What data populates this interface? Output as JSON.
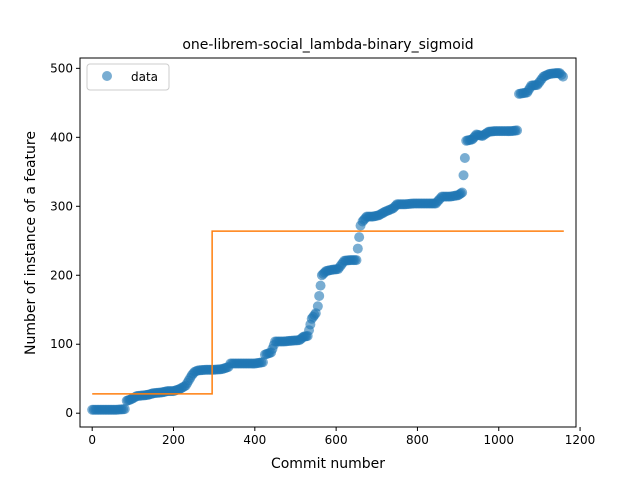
{
  "chart_data": {
    "type": "scatter",
    "title": "one-librem-social_lambda-binary_sigmoid",
    "xlabel": "Commit number",
    "ylabel": "Number of instance of a feature",
    "xlim": [
      -30,
      1190
    ],
    "ylim": [
      -20,
      515
    ],
    "xticks": [
      0,
      200,
      400,
      600,
      800,
      1000,
      1200
    ],
    "yticks": [
      0,
      100,
      200,
      300,
      400,
      500
    ],
    "legend": {
      "placement": "top-left",
      "entries": [
        "data"
      ]
    },
    "grid": false,
    "series": [
      {
        "name": "data",
        "kind": "scatter",
        "color": "#1f77b4",
        "points": [
          [
            0,
            5
          ],
          [
            20,
            5
          ],
          [
            40,
            5
          ],
          [
            60,
            5
          ],
          [
            80,
            6
          ],
          [
            85,
            18
          ],
          [
            95,
            20
          ],
          [
            110,
            25
          ],
          [
            130,
            26
          ],
          [
            140,
            27
          ],
          [
            150,
            29
          ],
          [
            170,
            30
          ],
          [
            185,
            32
          ],
          [
            200,
            32
          ],
          [
            215,
            35
          ],
          [
            230,
            40
          ],
          [
            245,
            55
          ],
          [
            252,
            60
          ],
          [
            260,
            62
          ],
          [
            280,
            63
          ],
          [
            300,
            63
          ],
          [
            320,
            64
          ],
          [
            335,
            67
          ],
          [
            340,
            72
          ],
          [
            360,
            72
          ],
          [
            380,
            72
          ],
          [
            400,
            72
          ],
          [
            420,
            74
          ],
          [
            425,
            85
          ],
          [
            440,
            88
          ],
          [
            450,
            104
          ],
          [
            470,
            104
          ],
          [
            490,
            105
          ],
          [
            510,
            106
          ],
          [
            520,
            111
          ],
          [
            530,
            112
          ],
          [
            540,
            137
          ],
          [
            550,
            145
          ],
          [
            555,
            155
          ],
          [
            565,
            200
          ],
          [
            575,
            206
          ],
          [
            590,
            208
          ],
          [
            605,
            209
          ],
          [
            620,
            221
          ],
          [
            635,
            222
          ],
          [
            650,
            222
          ],
          [
            660,
            272
          ],
          [
            665,
            278
          ],
          [
            675,
            285
          ],
          [
            690,
            285
          ],
          [
            705,
            287
          ],
          [
            720,
            292
          ],
          [
            740,
            297
          ],
          [
            750,
            303
          ],
          [
            770,
            303
          ],
          [
            790,
            304
          ],
          [
            810,
            304
          ],
          [
            830,
            304
          ],
          [
            845,
            304
          ],
          [
            860,
            314
          ],
          [
            880,
            314
          ],
          [
            900,
            316
          ],
          [
            910,
            320
          ],
          [
            920,
            395
          ],
          [
            935,
            397
          ],
          [
            945,
            404
          ],
          [
            960,
            402
          ],
          [
            975,
            408
          ],
          [
            990,
            409
          ],
          [
            1010,
            409
          ],
          [
            1030,
            409
          ],
          [
            1045,
            410
          ],
          [
            1050,
            463
          ],
          [
            1070,
            465
          ],
          [
            1080,
            475
          ],
          [
            1095,
            476
          ],
          [
            1110,
            488
          ],
          [
            1125,
            492
          ],
          [
            1140,
            493
          ],
          [
            1150,
            493
          ],
          [
            1158,
            488
          ]
        ]
      },
      {
        "name": "",
        "kind": "step",
        "color": "#ff7f0e",
        "points": [
          [
            0,
            28
          ],
          [
            295,
            28
          ],
          [
            295,
            264
          ],
          [
            1160,
            264
          ]
        ]
      }
    ]
  }
}
